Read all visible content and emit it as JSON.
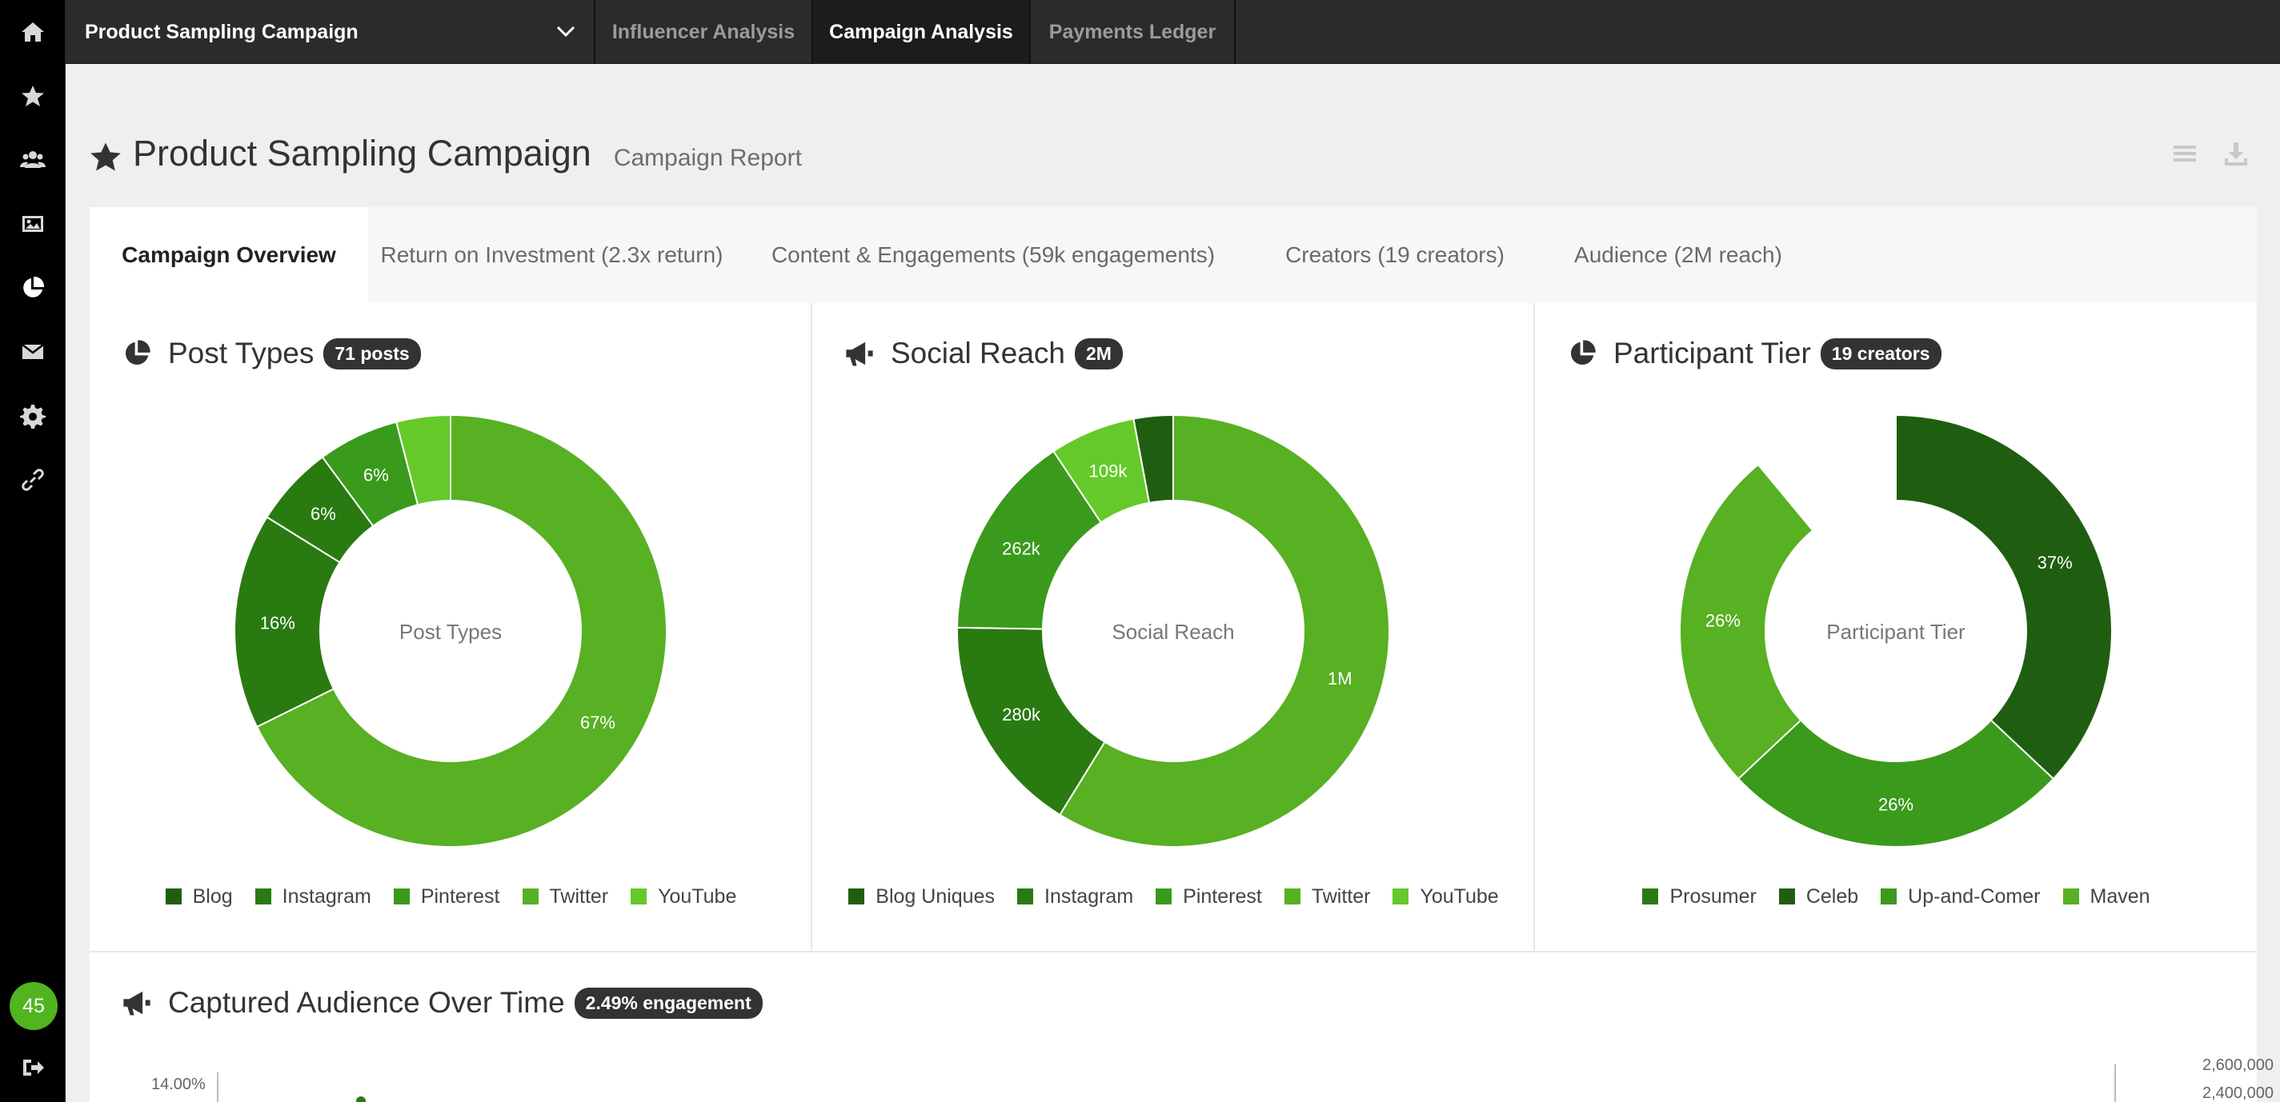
{
  "sidebar": {
    "icons": [
      "home-icon",
      "star-icon",
      "users-icon",
      "image-icon",
      "pie-chart-icon",
      "envelope-icon",
      "gear-icon",
      "link-icon",
      "logout-icon"
    ],
    "badge": "45"
  },
  "topnav": {
    "campaign": "Product Sampling Campaign",
    "tabs": [
      "Influencer Analysis",
      "Campaign Analysis",
      "Payments Ledger"
    ],
    "active_tab": "Campaign Analysis"
  },
  "header": {
    "title": "Product Sampling Campaign",
    "subtitle": "Campaign Report"
  },
  "tabs": [
    {
      "label": "Campaign Overview"
    },
    {
      "label": "Return on Investment (2.3x return)"
    },
    {
      "label": "Content & Engagements (59k engagements)"
    },
    {
      "label": "Creators (19 creators)"
    },
    {
      "label": "Audience (2M reach)"
    }
  ],
  "panels": [
    {
      "title": "Post Types",
      "badge": "71 posts",
      "center": "Post Types"
    },
    {
      "title": "Social Reach",
      "badge": "2M",
      "center": "Social Reach"
    },
    {
      "title": "Participant Tier",
      "badge": "19 creators",
      "center": "Participant Tier"
    }
  ],
  "bottom": {
    "title": "Captured Audience Over Time",
    "badge": "2.49% engagement",
    "ytick_left": "14.00%",
    "ytick_right_1": "2,600,000",
    "ytick_right_2": "2,400,000"
  },
  "colors": {
    "green_1": "#1f5e10",
    "green_2": "#2a7a12",
    "green_3": "#3a9a1c",
    "green_4": "#58b023",
    "green_5": "#66c92a"
  },
  "chart_data": [
    {
      "type": "pie",
      "title": "Post Types",
      "categories": [
        "Blog",
        "Instagram",
        "Pinterest",
        "Twitter",
        "YouTube"
      ],
      "values": [
        16,
        6,
        6,
        4,
        67
      ],
      "labels": [
        "16%",
        "6%",
        "6%",
        "",
        "67%"
      ],
      "legend": [
        "Blog",
        "Instagram",
        "Pinterest",
        "Twitter",
        "YouTube"
      ]
    },
    {
      "type": "pie",
      "title": "Social Reach",
      "categories": [
        "Blog Uniques",
        "Instagram",
        "Pinterest",
        "Twitter",
        "YouTube"
      ],
      "values": [
        280,
        262,
        109,
        50,
        1000
      ],
      "labels": [
        "280k",
        "262k",
        "109k",
        "",
        "1M"
      ],
      "legend": [
        "Blog Uniques",
        "Instagram",
        "Pinterest",
        "Twitter",
        "YouTube"
      ]
    },
    {
      "type": "pie",
      "title": "Participant Tier",
      "categories": [
        "Prosumer",
        "Celeb",
        "Up-and-Comer",
        "Maven"
      ],
      "values": [
        37,
        26,
        26,
        11
      ],
      "labels": [
        "37%",
        "26%",
        "26%",
        ""
      ],
      "legend": [
        "Prosumer",
        "Celeb",
        "Up-and-Comer",
        "Maven"
      ]
    }
  ]
}
